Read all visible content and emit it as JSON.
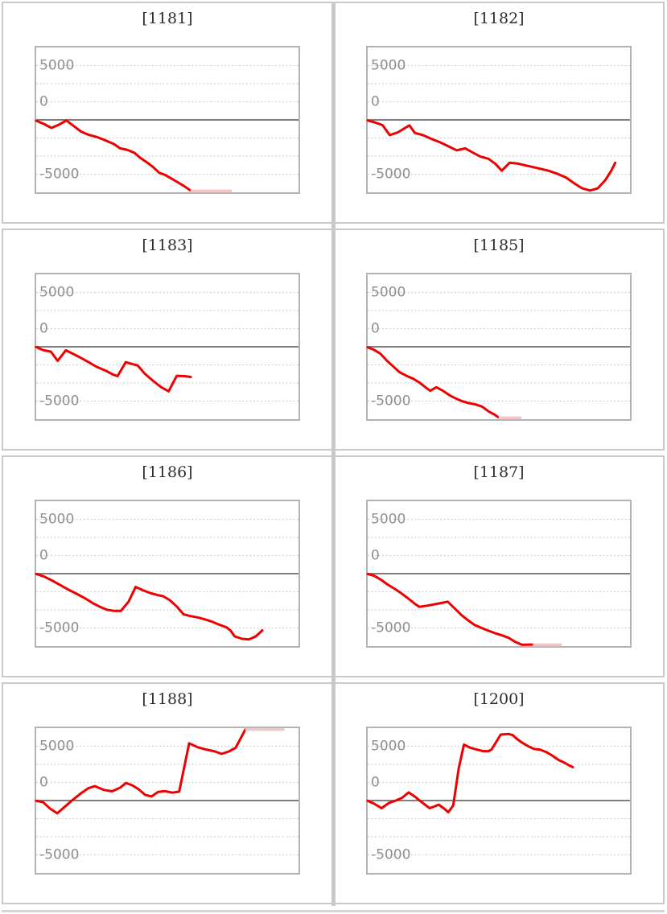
{
  "page": {
    "description": "Grid of eight machine slump graphs",
    "colors": {
      "line": "#ee0000",
      "clamp": "#f2c6c6",
      "grid_dotted": "#d1d1d1",
      "zero_line": "#7f7f7f",
      "plot_border": "#b3b3b3",
      "tile_border": "#c9c9c9",
      "tick_label": "#8f8f8f",
      "title_text": "#2e2e2e"
    }
  },
  "chart_data": [
    {
      "id": "1181",
      "title": "[1181]",
      "type": "line",
      "ylim": [
        -6700,
        6700
      ],
      "grid": "dotted-horizontal",
      "legend": "none",
      "y_ticks": [
        {
          "value": 5000,
          "label": "5000"
        },
        {
          "value": 0,
          "label": "0"
        },
        {
          "value": -5000,
          "label": "-5000"
        }
      ],
      "points": [
        [
          0.0,
          -75
        ],
        [
          0.029,
          -370
        ],
        [
          0.058,
          -740
        ],
        [
          0.087,
          -440
        ],
        [
          0.115,
          -50
        ],
        [
          0.144,
          -575
        ],
        [
          0.171,
          -1075
        ],
        [
          0.2,
          -1375
        ],
        [
          0.234,
          -1600
        ],
        [
          0.266,
          -1900
        ],
        [
          0.296,
          -2225
        ],
        [
          0.32,
          -2625
        ],
        [
          0.346,
          -2750
        ],
        [
          0.374,
          -3025
        ],
        [
          0.397,
          -3500
        ],
        [
          0.423,
          -3925
        ],
        [
          0.444,
          -4300
        ],
        [
          0.469,
          -4875
        ],
        [
          0.49,
          -5050
        ],
        [
          0.519,
          -5450
        ],
        [
          0.542,
          -5775
        ],
        [
          0.564,
          -6100
        ],
        [
          0.588,
          -6500
        ]
      ],
      "clamp": {
        "side": "bottom",
        "from": 0.588,
        "to": 0.745
      }
    },
    {
      "id": "1182",
      "title": "[1182]",
      "type": "line",
      "ylim": [
        -6700,
        6700
      ],
      "grid": "dotted-horizontal",
      "legend": "none",
      "y_ticks": [
        {
          "value": 5000,
          "label": "5000"
        },
        {
          "value": 0,
          "label": "0"
        },
        {
          "value": -5000,
          "label": "-5000"
        }
      ],
      "points": [
        [
          0.0,
          -50
        ],
        [
          0.026,
          -225
        ],
        [
          0.056,
          -475
        ],
        [
          0.084,
          -1400
        ],
        [
          0.115,
          -1150
        ],
        [
          0.159,
          -500
        ],
        [
          0.18,
          -1200
        ],
        [
          0.21,
          -1400
        ],
        [
          0.246,
          -1775
        ],
        [
          0.277,
          -2075
        ],
        [
          0.311,
          -2475
        ],
        [
          0.339,
          -2800
        ],
        [
          0.372,
          -2625
        ],
        [
          0.4,
          -3000
        ],
        [
          0.429,
          -3375
        ],
        [
          0.46,
          -3575
        ],
        [
          0.487,
          -4050
        ],
        [
          0.511,
          -4675
        ],
        [
          0.541,
          -3950
        ],
        [
          0.572,
          -4025
        ],
        [
          0.6,
          -4175
        ],
        [
          0.631,
          -4350
        ],
        [
          0.662,
          -4525
        ],
        [
          0.692,
          -4700
        ],
        [
          0.725,
          -4975
        ],
        [
          0.756,
          -5300
        ],
        [
          0.788,
          -5850
        ],
        [
          0.818,
          -6300
        ],
        [
          0.848,
          -6500
        ],
        [
          0.877,
          -6300
        ],
        [
          0.905,
          -5575
        ],
        [
          0.927,
          -4750
        ],
        [
          0.944,
          -3950
        ]
      ],
      "clamp": null
    },
    {
      "id": "1183",
      "title": "[1183]",
      "type": "line",
      "ylim": [
        -6700,
        6700
      ],
      "grid": "dotted-horizontal",
      "legend": "none",
      "y_ticks": [
        {
          "value": 5000,
          "label": "5000"
        },
        {
          "value": 0,
          "label": "0"
        },
        {
          "value": -5000,
          "label": "-5000"
        }
      ],
      "points": [
        [
          0.0,
          -25
        ],
        [
          0.025,
          -300
        ],
        [
          0.056,
          -450
        ],
        [
          0.082,
          -1300
        ],
        [
          0.113,
          -325
        ],
        [
          0.138,
          -625
        ],
        [
          0.169,
          -1000
        ],
        [
          0.2,
          -1425
        ],
        [
          0.231,
          -1850
        ],
        [
          0.267,
          -2225
        ],
        [
          0.292,
          -2550
        ],
        [
          0.31,
          -2700
        ],
        [
          0.341,
          -1425
        ],
        [
          0.372,
          -1625
        ],
        [
          0.387,
          -1725
        ],
        [
          0.415,
          -2500
        ],
        [
          0.446,
          -3150
        ],
        [
          0.477,
          -3725
        ],
        [
          0.505,
          -4100
        ],
        [
          0.536,
          -2675
        ],
        [
          0.566,
          -2700
        ],
        [
          0.589,
          -2775
        ]
      ],
      "clamp": null
    },
    {
      "id": "1185",
      "title": "[1185]",
      "type": "line",
      "ylim": [
        -6700,
        6700
      ],
      "grid": "dotted-horizontal",
      "legend": "none",
      "y_ticks": [
        {
          "value": 5000,
          "label": "5000"
        },
        {
          "value": 0,
          "label": "0"
        },
        {
          "value": -5000,
          "label": "-5000"
        }
      ],
      "points": [
        [
          0.0,
          -50
        ],
        [
          0.022,
          -250
        ],
        [
          0.048,
          -625
        ],
        [
          0.074,
          -1300
        ],
        [
          0.097,
          -1800
        ],
        [
          0.122,
          -2350
        ],
        [
          0.148,
          -2675
        ],
        [
          0.174,
          -2950
        ],
        [
          0.199,
          -3325
        ],
        [
          0.225,
          -3825
        ],
        [
          0.238,
          -4050
        ],
        [
          0.262,
          -3725
        ],
        [
          0.287,
          -4050
        ],
        [
          0.313,
          -4475
        ],
        [
          0.335,
          -4750
        ],
        [
          0.359,
          -5000
        ],
        [
          0.384,
          -5175
        ],
        [
          0.41,
          -5300
        ],
        [
          0.436,
          -5500
        ],
        [
          0.461,
          -5950
        ],
        [
          0.484,
          -6250
        ],
        [
          0.499,
          -6500
        ]
      ],
      "clamp": {
        "side": "bottom",
        "from": 0.499,
        "to": 0.586
      }
    },
    {
      "id": "1186",
      "title": "[1186]",
      "type": "line",
      "ylim": [
        -6700,
        6700
      ],
      "grid": "dotted-horizontal",
      "legend": "none",
      "y_ticks": [
        {
          "value": 5000,
          "label": "5000"
        },
        {
          "value": 0,
          "label": "0"
        },
        {
          "value": -5000,
          "label": "-5000"
        }
      ],
      "points": [
        [
          0.0,
          -25
        ],
        [
          0.031,
          -275
        ],
        [
          0.062,
          -650
        ],
        [
          0.092,
          -1050
        ],
        [
          0.123,
          -1475
        ],
        [
          0.154,
          -1850
        ],
        [
          0.185,
          -2250
        ],
        [
          0.215,
          -2700
        ],
        [
          0.243,
          -3050
        ],
        [
          0.27,
          -3325
        ],
        [
          0.295,
          -3425
        ],
        [
          0.323,
          -3425
        ],
        [
          0.352,
          -2575
        ],
        [
          0.379,
          -1225
        ],
        [
          0.407,
          -1525
        ],
        [
          0.434,
          -1775
        ],
        [
          0.459,
          -1950
        ],
        [
          0.484,
          -2075
        ],
        [
          0.51,
          -2450
        ],
        [
          0.536,
          -3025
        ],
        [
          0.562,
          -3750
        ],
        [
          0.588,
          -3900
        ],
        [
          0.614,
          -4025
        ],
        [
          0.642,
          -4200
        ],
        [
          0.671,
          -4425
        ],
        [
          0.698,
          -4700
        ],
        [
          0.726,
          -4950
        ],
        [
          0.741,
          -5250
        ],
        [
          0.757,
          -5775
        ],
        [
          0.785,
          -6000
        ],
        [
          0.811,
          -6050
        ],
        [
          0.837,
          -5775
        ],
        [
          0.862,
          -5225
        ]
      ],
      "clamp": null
    },
    {
      "id": "1187",
      "title": "[1187]",
      "type": "line",
      "ylim": [
        -6700,
        6700
      ],
      "grid": "dotted-horizontal",
      "legend": "none",
      "y_ticks": [
        {
          "value": 5000,
          "label": "5000"
        },
        {
          "value": 0,
          "label": "0"
        },
        {
          "value": -5000,
          "label": "-5000"
        }
      ],
      "points": [
        [
          0.0,
          -25
        ],
        [
          0.025,
          -200
        ],
        [
          0.05,
          -550
        ],
        [
          0.076,
          -1000
        ],
        [
          0.103,
          -1400
        ],
        [
          0.128,
          -1800
        ],
        [
          0.154,
          -2275
        ],
        [
          0.18,
          -2775
        ],
        [
          0.197,
          -3050
        ],
        [
          0.226,
          -2950
        ],
        [
          0.254,
          -2825
        ],
        [
          0.28,
          -2700
        ],
        [
          0.305,
          -2575
        ],
        [
          0.331,
          -3175
        ],
        [
          0.357,
          -3800
        ],
        [
          0.383,
          -4300
        ],
        [
          0.408,
          -4725
        ],
        [
          0.434,
          -5000
        ],
        [
          0.46,
          -5250
        ],
        [
          0.485,
          -5475
        ],
        [
          0.511,
          -5675
        ],
        [
          0.537,
          -5900
        ],
        [
          0.562,
          -6275
        ],
        [
          0.588,
          -6550
        ],
        [
          0.629,
          -6525
        ]
      ],
      "clamp": {
        "side": "bottom",
        "from": 0.63,
        "to": 0.74
      }
    },
    {
      "id": "1188",
      "title": "[1188]",
      "type": "line",
      "ylim": [
        -6700,
        6700
      ],
      "grid": "dotted-horizontal",
      "legend": "none",
      "y_ticks": [
        {
          "value": 5000,
          "label": "5000"
        },
        {
          "value": 0,
          "label": "0"
        },
        {
          "value": -5000,
          "label": "-5000"
        }
      ],
      "points": [
        [
          0.0,
          -25
        ],
        [
          0.026,
          -150
        ],
        [
          0.052,
          -725
        ],
        [
          0.08,
          -1175
        ],
        [
          0.109,
          -575
        ],
        [
          0.136,
          0
        ],
        [
          0.167,
          600
        ],
        [
          0.198,
          1125
        ],
        [
          0.224,
          1325
        ],
        [
          0.258,
          975
        ],
        [
          0.29,
          850
        ],
        [
          0.321,
          1200
        ],
        [
          0.342,
          1625
        ],
        [
          0.367,
          1400
        ],
        [
          0.39,
          1050
        ],
        [
          0.415,
          525
        ],
        [
          0.44,
          375
        ],
        [
          0.465,
          800
        ],
        [
          0.49,
          875
        ],
        [
          0.519,
          725
        ],
        [
          0.545,
          825
        ],
        [
          0.583,
          5275
        ],
        [
          0.616,
          4900
        ],
        [
          0.648,
          4700
        ],
        [
          0.681,
          4525
        ],
        [
          0.707,
          4300
        ],
        [
          0.735,
          4525
        ],
        [
          0.76,
          4850
        ],
        [
          0.797,
          6525
        ]
      ],
      "clamp": {
        "side": "top",
        "from": 0.797,
        "to": 0.947
      }
    },
    {
      "id": "1200",
      "title": "[1200]",
      "type": "line",
      "ylim": [
        -6700,
        6700
      ],
      "grid": "dotted-horizontal",
      "legend": "none",
      "y_ticks": [
        {
          "value": 5000,
          "label": "5000"
        },
        {
          "value": 0,
          "label": "0"
        },
        {
          "value": -5000,
          "label": "-5000"
        }
      ],
      "points": [
        [
          0.0,
          -25
        ],
        [
          0.025,
          -300
        ],
        [
          0.053,
          -700
        ],
        [
          0.081,
          -225
        ],
        [
          0.107,
          0
        ],
        [
          0.131,
          250
        ],
        [
          0.156,
          750
        ],
        [
          0.179,
          375
        ],
        [
          0.199,
          -25
        ],
        [
          0.22,
          -400
        ],
        [
          0.236,
          -700
        ],
        [
          0.256,
          -525
        ],
        [
          0.271,
          -375
        ],
        [
          0.292,
          -750
        ],
        [
          0.307,
          -1075
        ],
        [
          0.326,
          -450
        ],
        [
          0.347,
          2950
        ],
        [
          0.367,
          5150
        ],
        [
          0.39,
          4875
        ],
        [
          0.415,
          4700
        ],
        [
          0.44,
          4550
        ],
        [
          0.461,
          4550
        ],
        [
          0.472,
          4700
        ],
        [
          0.495,
          5600
        ],
        [
          0.507,
          6075
        ],
        [
          0.538,
          6125
        ],
        [
          0.553,
          6025
        ],
        [
          0.569,
          5675
        ],
        [
          0.589,
          5325
        ],
        [
          0.61,
          5025
        ],
        [
          0.634,
          4750
        ],
        [
          0.656,
          4700
        ],
        [
          0.68,
          4475
        ],
        [
          0.703,
          4150
        ],
        [
          0.727,
          3750
        ],
        [
          0.751,
          3475
        ],
        [
          0.769,
          3225
        ],
        [
          0.782,
          3075
        ]
      ],
      "clamp": null
    }
  ]
}
